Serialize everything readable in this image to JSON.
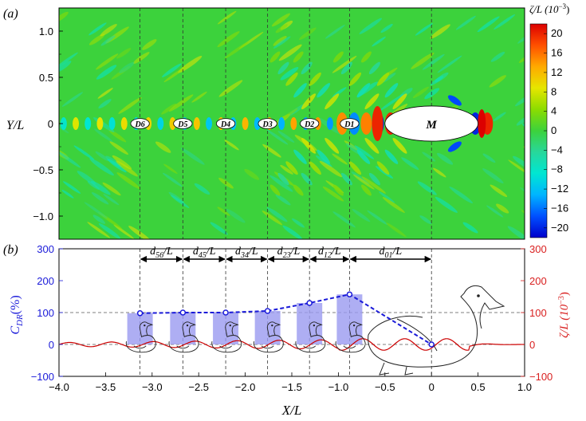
{
  "chart_data": [
    {
      "type": "heatmap",
      "panel_label": "(a)",
      "xlim": [
        -4.0,
        1.0
      ],
      "ylim": [
        -1.25,
        1.25
      ],
      "ylabel": "Y/L",
      "yticks": [
        -1.0,
        -0.5,
        0,
        0.5,
        1.0
      ],
      "ytick_labels": [
        "−1.0",
        "−0.5",
        "0",
        "0.5",
        "1.0"
      ],
      "colorbar": {
        "title": "ζ/L (10",
        "title_exp": "−3",
        "title_close": ")",
        "min": -22,
        "max": 22,
        "ticks": [
          20,
          16,
          12,
          8,
          4,
          0,
          -4,
          -8,
          -12,
          -16,
          -20
        ],
        "tick_labels": [
          "20",
          "16",
          "12",
          "8",
          "4",
          "0",
          "−4",
          "−8",
          "−12",
          "−16",
          "−20"
        ],
        "colors": [
          "#0000cc",
          "#0050ff",
          "#00b4ff",
          "#00e6d2",
          "#28d79b",
          "#3cd23c",
          "#8cdc00",
          "#e6e600",
          "#ffaa00",
          "#ff5000",
          "#dc0000"
        ]
      },
      "bodies": [
        {
          "label": "M",
          "x": 0.0,
          "y": 0.0,
          "half_length": 0.5,
          "half_width": 0.19
        },
        {
          "label": "D1",
          "x": -0.88,
          "y": 0.0,
          "half_length": 0.1,
          "half_width": 0.055
        },
        {
          "label": "D2",
          "x": -1.31,
          "y": 0.0,
          "half_length": 0.1,
          "half_width": 0.055
        },
        {
          "label": "D3",
          "x": -1.76,
          "y": 0.0,
          "half_length": 0.1,
          "half_width": 0.055
        },
        {
          "label": "D4",
          "x": -2.21,
          "y": 0.0,
          "half_length": 0.1,
          "half_width": 0.055
        },
        {
          "label": "D5",
          "x": -2.67,
          "y": 0.0,
          "half_length": 0.1,
          "half_width": 0.055
        },
        {
          "label": "D6",
          "x": -3.13,
          "y": 0.0,
          "half_length": 0.1,
          "half_width": 0.055
        }
      ]
    },
    {
      "type": "bar",
      "panel_label": "(b)",
      "xlabel": "X/L",
      "xlim": [
        -4.0,
        1.0
      ],
      "xticks": [
        -4.0,
        -3.5,
        -3.0,
        -2.5,
        -2.0,
        -1.5,
        -1.0,
        -0.5,
        0,
        0.5,
        1.0
      ],
      "xtick_labels": [
        "−4.0",
        "−3.5",
        "−3.0",
        "−2.5",
        "−2.0",
        "−1.5",
        "−1.0",
        "−0.5",
        "0",
        "0.5",
        "1.0"
      ],
      "ylabel_left": "C",
      "ylabel_left_sub": "DR",
      "ylabel_left_tail": "(%)",
      "ylabel_right": "ζ/L (10",
      "ylabel_right_exp": "−3",
      "ylabel_right_close": ")",
      "ylim": [
        -100,
        300
      ],
      "yticks": [
        -100,
        0,
        100,
        200,
        300
      ],
      "ytick_labels": [
        "−100",
        "0",
        "100",
        "200",
        "300"
      ],
      "x": [
        -3.13,
        -2.67,
        -2.21,
        -1.76,
        -1.31,
        -0.88,
        0.0
      ],
      "values": [
        98,
        100,
        100,
        105,
        130,
        157,
        0
      ],
      "reference_line_y": 100,
      "separations": [
        {
          "label": "d",
          "sub": "56",
          "tail": "/L",
          "from": -3.13,
          "to": -2.67
        },
        {
          "label": "d",
          "sub": "45",
          "tail": "/L",
          "from": -2.67,
          "to": -2.21
        },
        {
          "label": "d",
          "sub": "34",
          "tail": "/L",
          "from": -2.21,
          "to": -1.76
        },
        {
          "label": "d",
          "sub": "23",
          "tail": "/L",
          "from": -1.76,
          "to": -1.31
        },
        {
          "label": "d",
          "sub": "12",
          "tail": "/L",
          "from": -1.31,
          "to": -0.88
        },
        {
          "label": "d",
          "sub": "01",
          "tail": "/L",
          "from": -0.88,
          "to": 0.0
        }
      ],
      "colors": {
        "left_axis": "#1a1ad9",
        "right_axis": "#d92020",
        "bars": "#9a9af0",
        "dashed_line": "#1a1ad9",
        "wave": "#cc0000"
      }
    }
  ]
}
